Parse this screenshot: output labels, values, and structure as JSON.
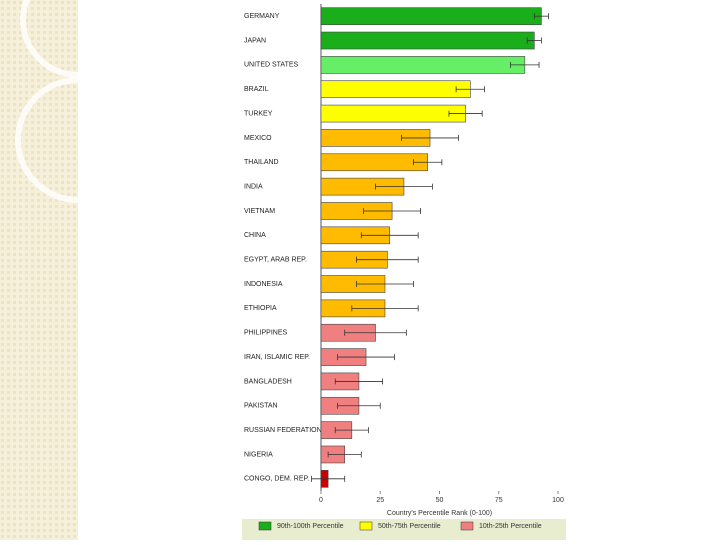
{
  "chart_data": {
    "type": "bar",
    "orientation": "horizontal",
    "categories": [
      "GERMANY",
      "JAPAN",
      "UNITED STATES",
      "BRAZIL",
      "TURKEY",
      "MEXICO",
      "THAILAND",
      "INDIA",
      "VIETNAM",
      "CHINA",
      "EGYPT, ARAB REP.",
      "INDONESIA",
      "ETHIOPIA",
      "PHILIPPINES",
      "IRAN, ISLAMIC REP.",
      "BANGLADESH",
      "PAKISTAN",
      "RUSSIAN FEDERATION",
      "NIGERIA",
      "CONGO, DEM. REP."
    ],
    "values": [
      93,
      90,
      86,
      63,
      61,
      46,
      45,
      35,
      30,
      29,
      28,
      27,
      27,
      23,
      19,
      16,
      16,
      13,
      10,
      3
    ],
    "errors": [
      3,
      3,
      6,
      6,
      7,
      12,
      6,
      12,
      12,
      12,
      13,
      12,
      14,
      13,
      12,
      10,
      9,
      7,
      7,
      7
    ],
    "colors": [
      "#1aae1a",
      "#1aae1a",
      "#66ee66",
      "#ffff00",
      "#ffff00",
      "#ffbb00",
      "#ffbb00",
      "#ffbb00",
      "#ffbb00",
      "#ffbb00",
      "#ffbb00",
      "#ffbb00",
      "#ffbb00",
      "#f08080",
      "#f08080",
      "#f08080",
      "#f08080",
      "#f08080",
      "#f08080",
      "#cc0000"
    ],
    "xlabel": "Country's Percentile Rank (0-100)",
    "xlim": [
      0,
      100
    ],
    "xticks": [
      0,
      25,
      50,
      75,
      100
    ],
    "legend": [
      {
        "name": "90th-100th Percentile",
        "color": "#1aae1a"
      },
      {
        "name": "50th-75th Percentile",
        "color": "#ffff00"
      },
      {
        "name": "10th-25th Percentile",
        "color": "#f08080"
      }
    ]
  }
}
